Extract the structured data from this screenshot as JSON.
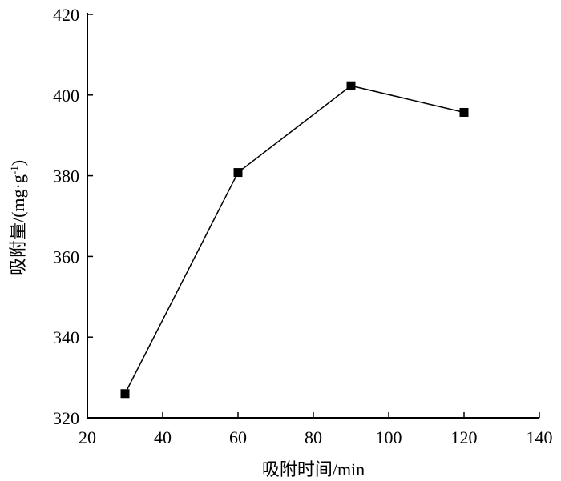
{
  "chart_data": {
    "type": "line",
    "xlabel": "吸附时间/min",
    "ylabel": "吸附量/(mg·g-1)",
    "ylabel_main": "吸附量/(mg·g",
    "ylabel_sup": "-1",
    "ylabel_close": ")",
    "xlim": [
      20,
      140
    ],
    "ylim": [
      320,
      420
    ],
    "xticks": [
      20,
      40,
      60,
      80,
      100,
      120,
      140
    ],
    "yticks": [
      320,
      340,
      360,
      380,
      400,
      420
    ],
    "grid": false,
    "marker": "square",
    "line_color": "#000000",
    "marker_color": "#000000",
    "series": [
      {
        "x": [
          30,
          60,
          90,
          120
        ],
        "values": [
          326,
          380.8,
          402.3,
          395.7
        ]
      }
    ]
  }
}
